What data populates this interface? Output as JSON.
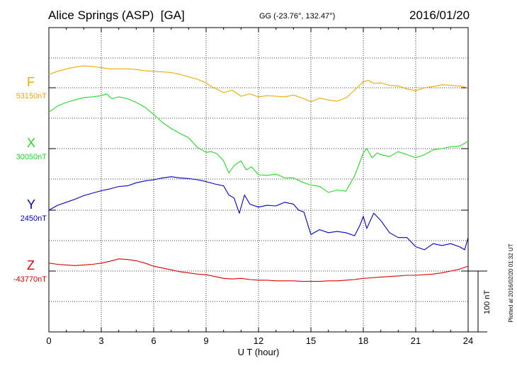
{
  "header": {
    "station": "Alice Springs (ASP)  [GA]",
    "coords": "GG (-23.76°, 132.47°)",
    "date": "2016/01/20"
  },
  "footer": {
    "plotted": "Plotted at 2016/02/20 01:32 UT"
  },
  "chart_data": {
    "type": "line",
    "title": "Alice Springs (ASP)  [GA]",
    "xlabel": "U T (hour)",
    "xlim": [
      0,
      24
    ],
    "xticks": [
      "0",
      "3",
      "6",
      "9",
      "12",
      "15",
      "18",
      "21",
      "24"
    ],
    "grid": true,
    "scale_bar": {
      "label": "100 nT",
      "nT": 100
    },
    "nt_per_row": 100,
    "series": [
      {
        "name": "F",
        "baseline_label": "53150nT",
        "baseline_nT": 53150,
        "color": "#f2a900",
        "x": [
          0,
          0.5,
          1,
          1.5,
          2,
          2.5,
          3,
          3.5,
          4,
          4.5,
          5,
          5.5,
          6,
          6.5,
          7,
          7.5,
          8,
          8.5,
          9,
          9.3,
          9.6,
          10,
          10.5,
          11,
          11.5,
          12,
          12.5,
          13,
          13.5,
          14,
          14.5,
          15,
          15.5,
          16,
          16.5,
          17,
          17.5,
          18,
          18.3,
          18.6,
          19,
          19.5,
          20,
          20.5,
          21,
          21.5,
          22,
          22.5,
          23,
          23.5,
          24
        ],
        "y": [
          53172,
          53177,
          53181,
          53184,
          53186,
          53185,
          53183,
          53181,
          53181,
          53181,
          53180,
          53178,
          53177,
          53176,
          53175,
          53172,
          53168,
          53164,
          53158,
          53152,
          53148,
          53142,
          53146,
          53136,
          53140,
          53135,
          53137,
          53136,
          53135,
          53138,
          53133,
          53127,
          53133,
          53130,
          53128,
          53133,
          53146,
          53160,
          53162,
          53157,
          53158,
          53154,
          53153,
          53148,
          53145,
          53150,
          53152,
          53155,
          53154,
          53153,
          53150
        ]
      },
      {
        "name": "X",
        "baseline_label": "30050nT",
        "baseline_nT": 30050,
        "color": "#22dd22",
        "x": [
          0,
          0.5,
          1,
          1.5,
          2,
          2.5,
          3,
          3.3,
          3.6,
          4,
          4.5,
          5,
          5.5,
          6,
          6.5,
          7,
          7.5,
          8,
          8.5,
          9,
          9.3,
          9.6,
          10,
          10.3,
          10.6,
          11,
          11.3,
          11.6,
          12,
          12.5,
          13,
          13.5,
          14,
          14.5,
          15,
          15.5,
          16,
          16.5,
          17,
          17.5,
          18,
          18.2,
          18.5,
          18.8,
          19,
          19.5,
          20,
          20.5,
          21,
          21.5,
          22,
          22.5,
          23,
          23.5,
          24
        ],
        "y": [
          30110,
          30120,
          30126,
          30130,
          30134,
          30135,
          30137,
          30140,
          30132,
          30135,
          30132,
          30126,
          30118,
          30106,
          30093,
          30083,
          30075,
          30068,
          30052,
          30044,
          30045,
          30042,
          30030,
          30010,
          30022,
          30030,
          30015,
          30020,
          30007,
          30006,
          30008,
          30002,
          30002,
          29995,
          29990,
          29988,
          29978,
          29982,
          29980,
          30005,
          30043,
          30050,
          30035,
          30043,
          30040,
          30037,
          30045,
          30040,
          30035,
          30040,
          30048,
          30050,
          30053,
          30054,
          30062
        ]
      },
      {
        "name": "Y",
        "baseline_label": "2450nT",
        "baseline_nT": 2450,
        "color": "#0000cc",
        "x": [
          0,
          0.5,
          1,
          1.5,
          2,
          2.5,
          3,
          3.5,
          4,
          4.5,
          5,
          5.5,
          6,
          6.5,
          7,
          7.5,
          8,
          8.5,
          9,
          9.5,
          10,
          10.3,
          10.6,
          10.9,
          11.2,
          11.5,
          12,
          12.5,
          13,
          13.5,
          14,
          14.3,
          14.6,
          15,
          15.5,
          16,
          16.5,
          17,
          17.5,
          17.8,
          18,
          18.2,
          18.4,
          18.6,
          19,
          19.5,
          20,
          20.5,
          21,
          21.5,
          22,
          22.5,
          23,
          23.5,
          23.8,
          24
        ],
        "y": [
          2450,
          2458,
          2463,
          2468,
          2474,
          2478,
          2482,
          2485,
          2489,
          2490,
          2495,
          2498,
          2500,
          2503,
          2505,
          2503,
          2502,
          2500,
          2497,
          2493,
          2490,
          2475,
          2470,
          2445,
          2475,
          2460,
          2455,
          2458,
          2457,
          2463,
          2460,
          2450,
          2447,
          2410,
          2418,
          2413,
          2415,
          2413,
          2408,
          2425,
          2440,
          2420,
          2433,
          2445,
          2433,
          2413,
          2405,
          2405,
          2390,
          2385,
          2395,
          2392,
          2395,
          2390,
          2385,
          2405
        ]
      },
      {
        "name": "Z",
        "baseline_label": "-43770nT",
        "baseline_nT": -43770,
        "color": "#dd0000",
        "x": [
          0,
          0.5,
          1,
          1.5,
          2,
          2.5,
          3,
          3.5,
          4,
          4.5,
          5,
          5.5,
          6,
          6.5,
          7,
          7.5,
          8,
          8.5,
          9,
          9.5,
          10,
          10.5,
          11,
          11.5,
          12,
          12.5,
          13,
          13.5,
          14,
          14.5,
          15,
          15.5,
          16,
          16.5,
          17,
          17.5,
          18,
          18.5,
          19,
          19.5,
          20,
          20.5,
          21,
          21.5,
          22,
          22.5,
          23,
          23.5,
          24
        ],
        "y": [
          -43757,
          -43759,
          -43760,
          -43761,
          -43760,
          -43759,
          -43757,
          -43754,
          -43750,
          -43751,
          -43753,
          -43757,
          -43762,
          -43765,
          -43768,
          -43771,
          -43773,
          -43775,
          -43776,
          -43779,
          -43782,
          -43783,
          -43782,
          -43784,
          -43785,
          -43785,
          -43786,
          -43786,
          -43786,
          -43787,
          -43787,
          -43787,
          -43786,
          -43786,
          -43785,
          -43784,
          -43782,
          -43781,
          -43780,
          -43779,
          -43778,
          -43777,
          -43777,
          -43776,
          -43775,
          -43773,
          -43770,
          -43767,
          -43762
        ]
      }
    ]
  }
}
